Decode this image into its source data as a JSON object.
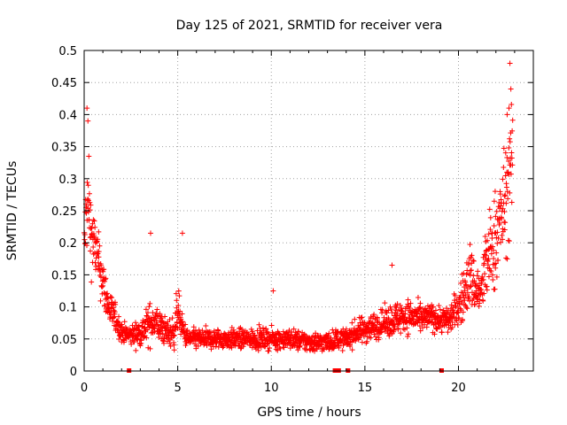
{
  "chart_data": {
    "type": "scatter",
    "title": "Day 125 of 2021, SRMTID for receiver vera",
    "xlabel": "GPS time / hours",
    "ylabel": "SRMTID / TECUs",
    "xlim": [
      0,
      24
    ],
    "ylim": [
      0,
      0.5
    ],
    "x_ticks": [
      0,
      5,
      10,
      15,
      20
    ],
    "x_tick_labels": [
      "0",
      "5",
      "10",
      "15",
      "20"
    ],
    "y_ticks": [
      0,
      0.05,
      0.1,
      0.15,
      0.2,
      0.25,
      0.3,
      0.35,
      0.4,
      0.45,
      0.5
    ],
    "y_tick_labels": [
      "0",
      "0.05",
      "0.1",
      "0.15",
      "0.2",
      "0.25",
      "0.3",
      "0.35",
      "0.4",
      "0.45",
      "0.5"
    ],
    "grid": true,
    "marker": "+",
    "series_color": "#ff0000",
    "gap_markers_x": [
      2.4,
      13.4,
      13.6,
      14.1,
      19.1
    ],
    "envelope": {
      "x": [
        0,
        0.1,
        0.2,
        0.35,
        0.5,
        0.7,
        1.0,
        1.3,
        1.7,
        2.0,
        2.5,
        3.0,
        3.4,
        3.7,
        4.0,
        4.4,
        4.8,
        5.0,
        5.2,
        5.5,
        6.0,
        7.0,
        8.0,
        9.0,
        10.0,
        11.0,
        12.0,
        13.0,
        13.5,
        14.0,
        14.5,
        15.0,
        15.5,
        16.0,
        16.5,
        17.0,
        17.5,
        18.0,
        18.5,
        19.0,
        19.5,
        20.0,
        20.3,
        20.6,
        20.9,
        21.2,
        21.5,
        21.8,
        22.1,
        22.4,
        22.7,
        22.9
      ],
      "y_center": [
        0.19,
        0.24,
        0.26,
        0.22,
        0.2,
        0.18,
        0.14,
        0.1,
        0.08,
        0.06,
        0.055,
        0.06,
        0.07,
        0.08,
        0.07,
        0.06,
        0.06,
        0.1,
        0.07,
        0.05,
        0.05,
        0.05,
        0.05,
        0.05,
        0.05,
        0.05,
        0.045,
        0.045,
        0.05,
        0.05,
        0.06,
        0.065,
        0.07,
        0.075,
        0.08,
        0.085,
        0.085,
        0.08,
        0.085,
        0.08,
        0.08,
        0.1,
        0.12,
        0.15,
        0.13,
        0.12,
        0.17,
        0.19,
        0.22,
        0.25,
        0.3,
        0.33
      ],
      "spread": [
        0.05,
        0.06,
        0.07,
        0.06,
        0.05,
        0.04,
        0.04,
        0.03,
        0.02,
        0.015,
        0.015,
        0.02,
        0.03,
        0.03,
        0.025,
        0.02,
        0.025,
        0.035,
        0.02,
        0.015,
        0.015,
        0.015,
        0.015,
        0.015,
        0.015,
        0.015,
        0.015,
        0.015,
        0.015,
        0.015,
        0.018,
        0.02,
        0.02,
        0.02,
        0.025,
        0.025,
        0.025,
        0.02,
        0.02,
        0.02,
        0.02,
        0.03,
        0.04,
        0.05,
        0.04,
        0.04,
        0.06,
        0.07,
        0.08,
        0.08,
        0.09,
        0.08
      ]
    },
    "annotated_points": [
      {
        "x": 0.15,
        "y": 0.41
      },
      {
        "x": 0.2,
        "y": 0.39
      },
      {
        "x": 0.25,
        "y": 0.335
      },
      {
        "x": 3.55,
        "y": 0.215
      },
      {
        "x": 5.25,
        "y": 0.215
      },
      {
        "x": 10.1,
        "y": 0.125
      },
      {
        "x": 16.45,
        "y": 0.165
      },
      {
        "x": 22.75,
        "y": 0.48
      },
      {
        "x": 22.8,
        "y": 0.44
      },
      {
        "x": 22.7,
        "y": 0.41
      },
      {
        "x": 22.6,
        "y": 0.4
      }
    ]
  }
}
